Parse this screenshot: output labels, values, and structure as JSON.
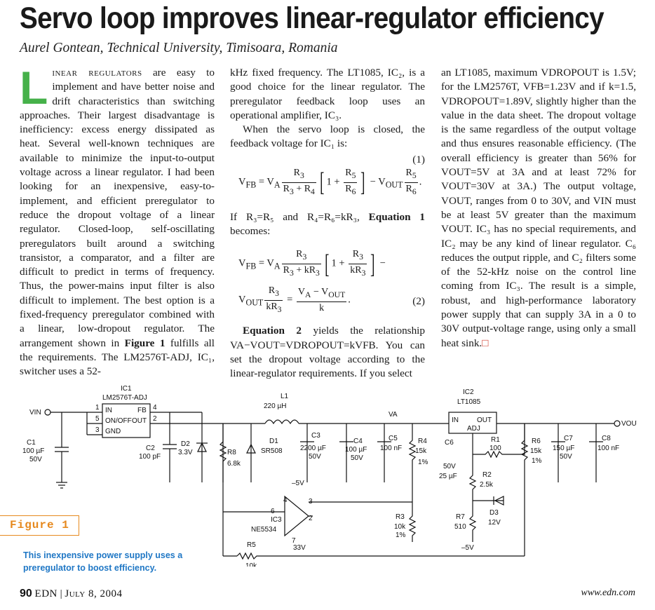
{
  "article": {
    "title": "Servo loop improves linear-regulator efficiency",
    "byline": "Aurel Gontean, Technical University, Timisoara, Romania",
    "col1": {
      "dropcap": "L",
      "lead": "inear regulators",
      "p1": " are easy to implement and have better noise and drift characteristics than switching approaches. Their largest disadvantage is inefficiency: excess energy dissipated as heat. Several well-known techniques are available to minimize the input-to-output voltage across a linear regulator. I had been looking for an inexpensive, easy-to-implement, and efficient preregulator to reduce the dropout voltage of a linear regulator. Closed-loop, self-oscillating preregulators built around a switching transistor, a comparator, and a filter are difficult to predict in terms of frequency. Thus, the power-mains input filter is also difficult to implement. The best option is a fixed-frequency preregulator combined with a linear, low-dropout regulator. The arrangement shown in ",
      "fig_ref": "Figure 1",
      "p1_end": " fulfills all the requirements. The LM2576T-ADJ, IC₁, switcher uses a 52-"
    },
    "col2": {
      "p1": "kHz fixed frequency. The LT1085, IC₂, is a good choice for the linear regulator. The preregulator feedback loop uses an operational amplifier, IC₃.",
      "p2": "When the servo loop is closed, the feedback voltage for IC₁ is:",
      "eq1_num": "(1)",
      "p3_a": "If R₃=R₅ and R₄=R₆=kR₃, ",
      "p3_bold": "Equation 1",
      "p3_b": " becomes:",
      "eq2_num": "(2)",
      "p4_bold": "Equation 2",
      "p4": " yields the relationship VA−VOUT=VDROPOUT=kVFB. You can set the dropout voltage according to the linear-regulator requirements. If you select"
    },
    "col3": {
      "p1": "an LT1085, maximum VDROPOUT is 1.5V; for the LM2576T, VFB=1.23V and if k=1.5, VDROPOUT=1.89V, slightly higher than the value in the data sheet. The dropout voltage is the same regardless of the output voltage and thus ensures reasonable efficiency. (The overall efficiency is greater than 56% for VOUT=5V at 3A and at least 72% for VOUT=30V at 3A.) The output voltage, VOUT, ranges from 0 to 30V, and VIN must be at least 5V greater than the maximum VOUT. IC₃ has no special requirements, and IC₂ may be any kind of linear regulator. C₆ reduces the output ripple, and C₂ filters some of the 52-kHz noise on the control line coming from IC₃. The result is a simple, robust, and high-performance laboratory power supply that can supply 3A in a 0 to 30V output-voltage range, using only a small heat sink.",
      "end_mark": "□"
    }
  },
  "figure": {
    "label": "Figure 1",
    "caption": "This inexpensive power supply uses a preregulator to boost efficiency.",
    "schematic": {
      "vin": "VIN",
      "vout": "VOUT",
      "va": "VA",
      "ic1": "IC1",
      "ic1_part": "LM2576T-ADJ",
      "ic1_pin_in": "IN",
      "ic1_pin_onoff": "ON/OFF",
      "ic1_pin_out": "OUT",
      "ic1_pin_fb": "FB",
      "ic1_pin_gnd": "GND",
      "ic2": "IC2",
      "ic2_part": "LT1085",
      "ic2_pin_in": "IN",
      "ic2_pin_out": "OUT",
      "ic2_pin_adj": "ADJ",
      "ic3": "IC3",
      "ic3_part": "NE5534",
      "c1": "C1",
      "c1_val": "100 µF",
      "c1_v": "50V",
      "c2": "C2",
      "c2_val": "100 pF",
      "d2": "D2",
      "d2_val": "3.3V",
      "r8": "R8",
      "r8_val": "6.8k",
      "l1": "L1",
      "l1_val": "220 µH",
      "d1": "D1",
      "d1_val": "SR508",
      "c3": "C3",
      "c3_val": "2200 µF",
      "c3_v": "50V",
      "c4": "C4",
      "c4_val": "100 µF",
      "c4_v": "50V",
      "c5": "C5",
      "c5_val": "100 nF",
      "r4": "R4",
      "r4_val": "15k",
      "r4_tol": "1%",
      "r3": "R3",
      "r3_val": "10k",
      "r3_tol": "1%",
      "r5": "R5",
      "r5_val": "10k",
      "r5_tol": "1%",
      "c6": "C6",
      "c6_v": "50V",
      "c6_val": "25 µF",
      "r1": "R1",
      "r1_val": "100",
      "r2": "R2",
      "r2_val": "2.5k",
      "r7": "R7",
      "r7_val": "510",
      "d3": "D3",
      "d3_val": "12V",
      "r6": "R6",
      "r6_val": "15k",
      "r6_tol": "1%",
      "c7": "C7",
      "c7_val": "150 µF",
      "c7_v": "50V",
      "c8": "C8",
      "c8_val": "100 nF",
      "neg5a": "–5V",
      "neg5b": "–5V",
      "pos33": "33V",
      "p1": "1",
      "p2": "2",
      "p3": "3",
      "p4": "4",
      "p5": "5",
      "p6": "6",
      "p7": "7"
    }
  },
  "footer": {
    "page": "90",
    "mag": "EDN",
    "date": "July 8, 2004",
    "site": "www.edn.com"
  }
}
